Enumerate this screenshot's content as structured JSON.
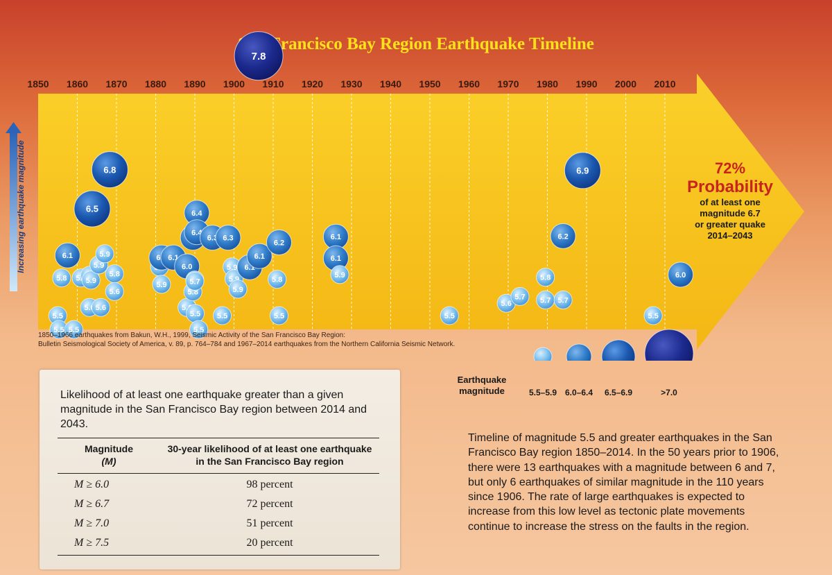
{
  "chart_data": {
    "type": "scatter",
    "title": "San Francisco Bay Region Earthquake Timeline",
    "x_ticks": [
      1850,
      1860,
      1870,
      1880,
      1890,
      1900,
      1910,
      1920,
      1930,
      1940,
      1950,
      1960,
      1970,
      1980,
      1990,
      2000,
      2010
    ],
    "xlim": [
      1850,
      2016
    ],
    "ylabel": "Increasing earthquake magnitude",
    "grid": true,
    "points": [
      {
        "x": 1855.0,
        "m": 5.5,
        "label": "5.5"
      },
      {
        "x": 1855.3,
        "m": 5.5,
        "label": "5.5"
      },
      {
        "x": 1859.1,
        "m": 5.5,
        "label": "5.5"
      },
      {
        "x": 1856.0,
        "m": 5.8,
        "label": "5.8"
      },
      {
        "x": 1861.0,
        "m": 5.8,
        "label": "5.8"
      },
      {
        "x": 1857.5,
        "m": 6.1,
        "label": "6.1"
      },
      {
        "x": 1863.1,
        "m": 5.6,
        "label": "5.6"
      },
      {
        "x": 1866.0,
        "m": 5.6,
        "label": "5.6"
      },
      {
        "x": 1863.2,
        "m": 5.9,
        "label": "5.9"
      },
      {
        "x": 1863.5,
        "m": 5.9,
        "label": "5.9"
      },
      {
        "x": 1865.5,
        "m": 5.9,
        "label": "5.9"
      },
      {
        "x": 1867.0,
        "m": 5.9,
        "label": "5.9"
      },
      {
        "x": 1863.8,
        "m": 6.5,
        "label": "6.5"
      },
      {
        "x": 1868.3,
        "m": 6.8,
        "label": "6.8"
      },
      {
        "x": 1869.5,
        "m": 5.8,
        "label": "5.8"
      },
      {
        "x": 1869.5,
        "m": 5.6,
        "label": "5.6"
      },
      {
        "x": 1881.0,
        "m": 5.9,
        "label": "5.9"
      },
      {
        "x": 1881.5,
        "m": 5.9,
        "label": "5.9"
      },
      {
        "x": 1881.5,
        "m": 6.1,
        "label": "6.1"
      },
      {
        "x": 1884.5,
        "m": 6.1,
        "label": "6.1"
      },
      {
        "x": 1888.0,
        "m": 6.0,
        "label": "6.0"
      },
      {
        "x": 1888.0,
        "m": 5.6,
        "label": "5.6"
      },
      {
        "x": 1889.5,
        "m": 5.8,
        "label": "5.8"
      },
      {
        "x": 1890.0,
        "m": 5.8,
        "label": "5.8"
      },
      {
        "x": 1890.0,
        "m": 5.7,
        "label": "5.7"
      },
      {
        "x": 1890.1,
        "m": 5.5,
        "label": "5.5"
      },
      {
        "x": 1891.0,
        "m": 5.5,
        "label": "5.5"
      },
      {
        "x": 1889.5,
        "m": 6.3,
        "label": "6.3"
      },
      {
        "x": 1890.5,
        "m": 6.4,
        "label": "6.4"
      },
      {
        "x": 1890.5,
        "m": 6.4,
        "label": "6.4"
      },
      {
        "x": 1894.5,
        "m": 6.3,
        "label": "6.3"
      },
      {
        "x": 1898.5,
        "m": 6.3,
        "label": "6.3"
      },
      {
        "x": 1897.0,
        "m": 5.5,
        "label": "5.5"
      },
      {
        "x": 1899.5,
        "m": 5.9,
        "label": "5.9"
      },
      {
        "x": 1900.0,
        "m": 5.9,
        "label": "5.9"
      },
      {
        "x": 1901.0,
        "m": 5.9,
        "label": "5.9"
      },
      {
        "x": 1904.0,
        "m": 6.1,
        "label": "6.1"
      },
      {
        "x": 1906.5,
        "m": 6.1,
        "label": "6.1"
      },
      {
        "x": 1906.3,
        "m": 7.8,
        "label": "7.8"
      },
      {
        "x": 1911.5,
        "m": 6.2,
        "label": "6.2"
      },
      {
        "x": 1911.0,
        "m": 5.8,
        "label": "5.8"
      },
      {
        "x": 1911.5,
        "m": 5.5,
        "label": "5.5"
      },
      {
        "x": 1926.0,
        "m": 6.1,
        "label": "6.1"
      },
      {
        "x": 1926.0,
        "m": 6.1,
        "label": "6.1"
      },
      {
        "x": 1927.0,
        "m": 5.9,
        "label": "5.9"
      },
      {
        "x": 1955.0,
        "m": 5.5,
        "label": "5.5"
      },
      {
        "x": 1969.5,
        "m": 5.6,
        "label": "5.6"
      },
      {
        "x": 1973.0,
        "m": 5.7,
        "label": "5.7"
      },
      {
        "x": 1979.5,
        "m": 5.8,
        "label": "5.8"
      },
      {
        "x": 1979.5,
        "m": 5.7,
        "label": "5.7"
      },
      {
        "x": 1984.0,
        "m": 5.7,
        "label": "5.7"
      },
      {
        "x": 1984.0,
        "m": 6.2,
        "label": "6.2"
      },
      {
        "x": 1989.0,
        "m": 6.9,
        "label": "6.9"
      },
      {
        "x": 2007.0,
        "m": 5.5,
        "label": "5.5"
      },
      {
        "x": 2014.0,
        "m": 6.0,
        "label": "6.0"
      }
    ]
  },
  "source_note": {
    "line1": "1850–1966 earthquakes from Bakun, W.H., 1999, Seismic Activity of the San Francisco Bay Region:",
    "line2": "Bulletin Seismological Society of America, v. 89, p. 764–784 and 1967–2014 earthquakes from the Northern California Seismic Network."
  },
  "probability": {
    "percent": "72%",
    "word": "Probability",
    "line1": "of at least one",
    "line2": "magnitude 6.7",
    "line3": "or greater quake",
    "line4": "2014–2043"
  },
  "legend": {
    "title_line1": "Earthquake",
    "title_line2": "magnitude",
    "items": [
      "5.5–5.9",
      "6.0–6.4",
      "6.5–6.9",
      ">7.0"
    ],
    "colors": [
      "#6bb6ea",
      "#2d78c7",
      "#1a4fa8",
      "#1a2a86"
    ]
  },
  "table": {
    "caption": "Likelihood of at least one earthquake greater than a given magnitude in the San Francisco Bay region between 2014 and 2043.",
    "header_col1_line1": "Magnitude",
    "header_col1_line2": "(M)",
    "header_col2_line1": "30-year likelihood of at least one earthquake",
    "header_col2_line2": "in the San Francisco Bay region",
    "rows": [
      {
        "magnitude": "M ≥ 6.0",
        "likelihood": "98 percent"
      },
      {
        "magnitude": "M ≥ 6.7",
        "likelihood": "72 percent"
      },
      {
        "magnitude": "M ≥ 7.0",
        "likelihood": "51 percent"
      },
      {
        "magnitude": "M ≥ 7.5",
        "likelihood": "20 percent"
      }
    ]
  },
  "summary": "Timeline of magnitude 5.5 and greater earthquakes in the San Francisco Bay region 1850–2014. In the 50 years prior to 1906, there were 13 earthquakes with a magnitude between 6 and 7, but only 6 earthquakes of similar magnitude in the 110 years since 1906. The rate of large earthquakes is expected to increase from this low level as tectonic plate movements continue to increase the stress on the faults in the region.",
  "colors": {
    "arrow": "#f8c21a",
    "title": "#ffe21a",
    "probability": "#c8241f"
  }
}
